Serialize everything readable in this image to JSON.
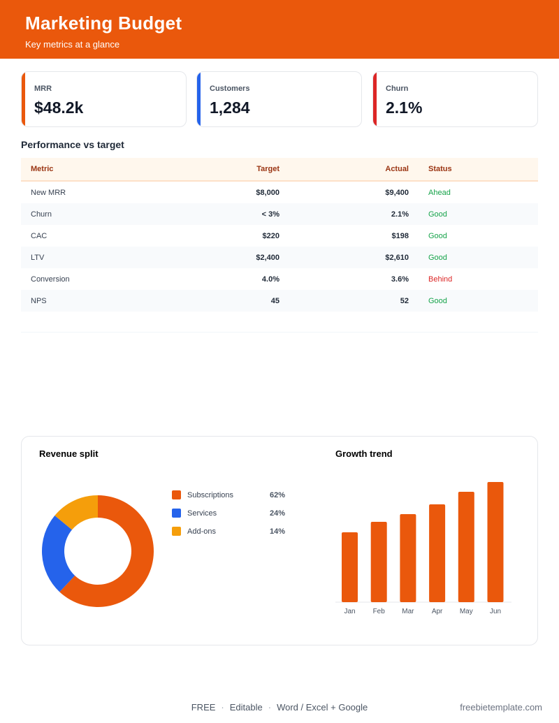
{
  "header": {
    "title": "Marketing Budget",
    "subtitle": "Key metrics at a glance"
  },
  "kpis": [
    {
      "label": "MRR",
      "value": "$48.2k",
      "color": "#ea580c"
    },
    {
      "label": "Customers",
      "value": "1,284",
      "color": "#2563eb"
    },
    {
      "label": "Churn",
      "value": "2.1%",
      "color": "#dc2626"
    }
  ],
  "table": {
    "title": "Performance vs target",
    "columns": [
      "Metric",
      "Target",
      "Actual",
      "Status"
    ],
    "rows": [
      [
        "New MRR",
        "$8,000",
        "$9,400",
        "Ahead"
      ],
      [
        "Churn",
        "< 3%",
        "2.1%",
        "Good"
      ],
      [
        "CAC",
        "$220",
        "$198",
        "Good"
      ],
      [
        "LTV",
        "$2,400",
        "$2,610",
        "Good"
      ],
      [
        "Conversion",
        "4.0%",
        "3.6%",
        "Behind"
      ],
      [
        "NPS",
        "45",
        "52",
        "Good"
      ]
    ],
    "status_colors": [
      "#16a34a",
      "#16a34a",
      "#16a34a",
      "#16a34a",
      "#dc2626",
      "#16a34a"
    ]
  },
  "revenue_split": {
    "type": "pie",
    "title": "Revenue split",
    "categories": [
      "Subscriptions",
      "Services",
      "Add-ons"
    ],
    "values": [
      62,
      24,
      14
    ],
    "value_labels": [
      "62%",
      "24%",
      "14%"
    ],
    "colors": [
      "#ea580c",
      "#2563eb",
      "#f59e0b"
    ]
  },
  "growth_trend": {
    "type": "bar",
    "title": "Growth trend",
    "categories": [
      "Jan",
      "Feb",
      "Mar",
      "Apr",
      "May",
      "Jun"
    ],
    "values": [
      100,
      115,
      126,
      140,
      158,
      172
    ],
    "color": "#ea580c"
  },
  "footer": {
    "items": [
      "FREE",
      "Editable",
      "Word / Excel + Google"
    ],
    "site": "freebietemplate.com"
  }
}
